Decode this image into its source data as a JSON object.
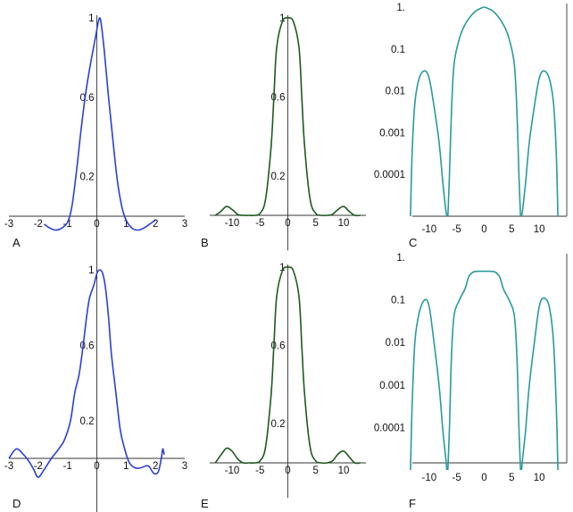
{
  "colors": {
    "blue": "#2a3fd6",
    "green": "#1d5a1d",
    "teal": "#2a9a9a"
  },
  "chart_data": [
    {
      "type": "line",
      "panel": "A",
      "color": "blue",
      "scale": "linear",
      "xlim": [
        -3,
        3
      ],
      "ylim": [
        -0.15,
        1.0
      ],
      "xticks": [
        "-3",
        "-2",
        "-1",
        "0",
        "1",
        "2",
        "3"
      ],
      "yticks": [
        "0.2",
        "0.6",
        "1"
      ],
      "series": [
        {
          "x": [
            -1.8,
            -1.6,
            -1.4,
            -1.2,
            -1.0,
            -0.85,
            -0.7,
            -0.55,
            -0.4,
            -0.25,
            -0.1,
            0.0,
            0.05,
            0.1,
            0.15,
            0.25,
            0.4,
            0.55,
            0.7,
            0.85,
            1.0,
            1.2,
            1.4,
            1.6,
            1.8,
            2.0
          ],
          "y": [
            -0.04,
            -0.06,
            -0.07,
            -0.06,
            -0.03,
            0.05,
            0.22,
            0.42,
            0.6,
            0.74,
            0.86,
            0.94,
            0.98,
            1.0,
            0.97,
            0.84,
            0.6,
            0.38,
            0.18,
            0.05,
            -0.02,
            -0.06,
            -0.07,
            -0.06,
            -0.04,
            -0.02
          ]
        }
      ]
    },
    {
      "type": "line",
      "panel": "B",
      "color": "green",
      "scale": "linear",
      "xlim": [
        -14,
        14
      ],
      "ylim": [
        -0.01,
        1.0
      ],
      "xticks": [
        "-10",
        "-5",
        "0",
        "5",
        "10"
      ],
      "yticks": [
        "0.2",
        "0.6",
        "1"
      ],
      "series": [
        {
          "x": [
            -13,
            -12,
            -11,
            -10,
            -9,
            -8,
            -7,
            -6,
            -5,
            -4,
            -3,
            -2.5,
            -2,
            -1,
            0,
            1,
            2,
            2.5,
            3,
            4,
            5,
            6,
            7,
            8,
            9,
            10,
            11,
            12,
            13
          ],
          "y": [
            0.0,
            0.02,
            0.045,
            0.03,
            0.005,
            0.0,
            0.0,
            0.0,
            0.01,
            0.08,
            0.35,
            0.6,
            0.85,
            0.98,
            1.0,
            0.98,
            0.85,
            0.6,
            0.35,
            0.08,
            0.01,
            0.0,
            0.0,
            0.005,
            0.03,
            0.045,
            0.02,
            0.0,
            0.0
          ]
        }
      ]
    },
    {
      "type": "line",
      "panel": "C",
      "color": "teal",
      "scale": "log",
      "xlim": [
        -15,
        15
      ],
      "ylim": [
        1e-05,
        1.0
      ],
      "xticks": [
        "-10",
        "-5",
        "0",
        "5",
        "10"
      ],
      "yticks": [
        "1.",
        "0.1",
        "0.01",
        "0.001",
        "0.0001"
      ],
      "series": [
        {
          "x": [
            -13.4,
            -13.1,
            -12.6,
            -11.8,
            -10.8,
            -10.0,
            -9.2,
            -8.2,
            -7.5,
            -7.0,
            -6.8
          ],
          "y": [
            1e-05,
            0.0003,
            0.005,
            0.02,
            0.03,
            0.02,
            0.005,
            0.0006,
            6e-05,
            1.5e-05,
            1e-05
          ]
        },
        {
          "x": [
            -6.6,
            -6.3,
            -6.0,
            -5.5,
            -4.5,
            -3.5,
            -2.5,
            -1.5,
            -0.5,
            0,
            0.5,
            1.5,
            2.5,
            3.5,
            4.5,
            5.5,
            6.0,
            6.3,
            6.6
          ],
          "y": [
            1e-05,
            0.0001,
            0.002,
            0.04,
            0.18,
            0.38,
            0.6,
            0.82,
            0.95,
            1.0,
            0.95,
            0.82,
            0.6,
            0.38,
            0.18,
            0.04,
            0.002,
            0.0001,
            1e-05
          ]
        },
        {
          "x": [
            6.8,
            7.0,
            7.5,
            8.2,
            9.2,
            10.0,
            10.8,
            11.8,
            12.6,
            13.1,
            13.4
          ],
          "y": [
            1e-05,
            1.5e-05,
            6e-05,
            0.0006,
            0.005,
            0.02,
            0.03,
            0.02,
            0.005,
            0.0003,
            1e-05
          ]
        }
      ]
    },
    {
      "type": "line",
      "panel": "D",
      "color": "blue",
      "scale": "linear",
      "xlim": [
        -3,
        3
      ],
      "ylim": [
        -0.15,
        1.0
      ],
      "xticks": [
        "-3",
        "-2",
        "-1",
        "0",
        "1",
        "2",
        "3"
      ],
      "yticks": [
        "0.2",
        "0.6",
        "1"
      ],
      "series": [
        {
          "x": [
            -3.0,
            -2.75,
            -2.5,
            -2.3,
            -2.15,
            -2.0,
            -1.8,
            -1.55,
            -1.3,
            -1.1,
            -0.9,
            -0.75,
            -0.6,
            -0.45,
            -0.35,
            -0.25,
            -0.1,
            0.0,
            0.1,
            0.2,
            0.3,
            0.4,
            0.5,
            0.65,
            0.8,
            0.95,
            1.1,
            1.3,
            1.5,
            1.75,
            1.95,
            2.1,
            2.2,
            2.25,
            2.3
          ],
          "y": [
            0.0,
            0.05,
            0.02,
            -0.02,
            -0.06,
            -0.1,
            -0.06,
            0.0,
            0.05,
            0.1,
            0.2,
            0.35,
            0.45,
            0.62,
            0.75,
            0.85,
            0.92,
            0.98,
            1.0,
            0.98,
            0.9,
            0.75,
            0.55,
            0.35,
            0.15,
            0.05,
            -0.02,
            -0.05,
            -0.05,
            -0.04,
            -0.08,
            -0.07,
            0.0,
            0.05,
            0.02
          ]
        }
      ]
    },
    {
      "type": "line",
      "panel": "E",
      "color": "green",
      "scale": "linear",
      "xlim": [
        -14,
        14
      ],
      "ylim": [
        -0.01,
        1.0
      ],
      "xticks": [
        "-10",
        "-5",
        "0",
        "5",
        "10"
      ],
      "yticks": [
        "0.2",
        "0.6",
        "1"
      ],
      "series": [
        {
          "x": [
            -13,
            -12,
            -11,
            -10,
            -9,
            -8,
            -7,
            -6,
            -5,
            -4,
            -3,
            -2.5,
            -2,
            -1,
            0,
            1,
            2,
            2.5,
            3,
            4,
            5,
            6,
            7,
            8,
            9,
            10,
            11,
            12,
            13
          ],
          "y": [
            0.0,
            0.04,
            0.075,
            0.06,
            0.02,
            0.0,
            0.0,
            0.0,
            0.01,
            0.08,
            0.35,
            0.6,
            0.85,
            0.98,
            1.0,
            0.98,
            0.85,
            0.6,
            0.35,
            0.08,
            0.01,
            0.0,
            0.0,
            0.01,
            0.045,
            0.06,
            0.03,
            0.0,
            0.0
          ]
        }
      ]
    },
    {
      "type": "line",
      "panel": "F",
      "color": "teal",
      "scale": "log",
      "xlim": [
        -15,
        15
      ],
      "ylim": [
        1e-05,
        1.0
      ],
      "xticks": [
        "-10",
        "-5",
        "0",
        "5",
        "10"
      ],
      "yticks": [
        "1.",
        "0.1",
        "0.01",
        "0.001",
        "0.0001"
      ],
      "series": [
        {
          "x": [
            -13.4,
            -13.1,
            -12.6,
            -11.8,
            -10.8,
            -10.0,
            -9.2,
            -8.2,
            -7.5,
            -7.0,
            -6.8
          ],
          "y": [
            1e-05,
            0.0003,
            0.01,
            0.05,
            0.1,
            0.07,
            0.012,
            0.001,
            8e-05,
            2e-05,
            1e-05
          ]
        },
        {
          "x": [
            -6.6,
            -6.3,
            -6.0,
            -5.5,
            -4.5,
            -3.5,
            -2.8,
            -2.0,
            -1.0,
            0,
            1.0,
            2.0,
            2.8,
            3.5,
            4.5,
            5.5,
            6.0,
            6.3,
            6.6
          ],
          "y": [
            1e-05,
            0.0001,
            0.003,
            0.04,
            0.1,
            0.18,
            0.35,
            0.45,
            0.47,
            0.47,
            0.47,
            0.45,
            0.35,
            0.18,
            0.1,
            0.04,
            0.003,
            0.0001,
            1e-05
          ]
        },
        {
          "x": [
            6.8,
            7.0,
            7.5,
            8.2,
            9.2,
            10.0,
            10.8,
            11.8,
            12.6,
            13.1,
            13.4
          ],
          "y": [
            1e-05,
            2e-05,
            8e-05,
            0.001,
            0.012,
            0.07,
            0.11,
            0.07,
            0.01,
            0.0003,
            1e-05
          ]
        }
      ]
    }
  ]
}
